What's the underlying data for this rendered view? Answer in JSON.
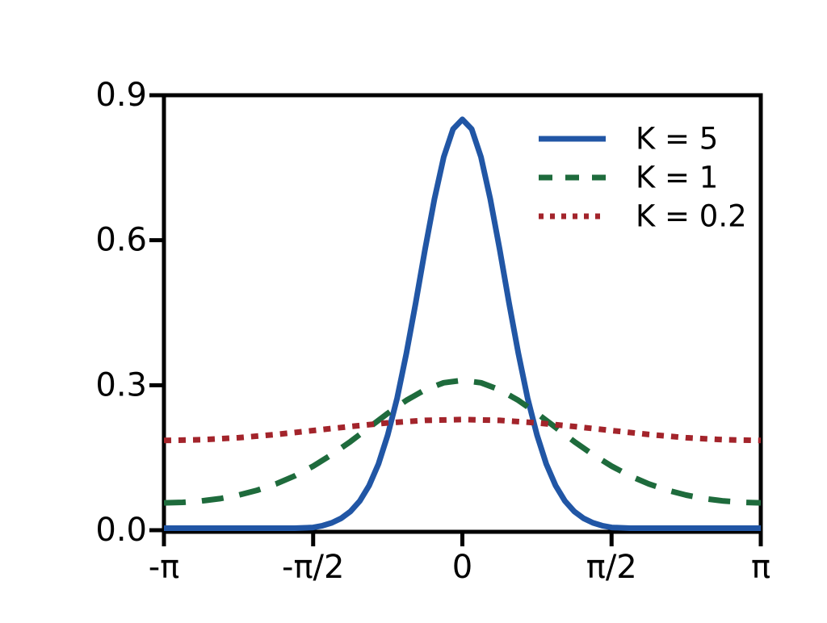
{
  "figure": {
    "background": "#ffffff",
    "axis_color": "#000000"
  },
  "chart_data": {
    "type": "line",
    "title": "",
    "xlabel": "",
    "ylabel": "",
    "x_unit": "radians (x values stored as multiples of pi)",
    "xlim_over_pi": [
      -1,
      1
    ],
    "ylim": [
      0,
      0.9
    ],
    "grid": false,
    "legend_position": "upper right",
    "x_ticks": [
      {
        "pos": -1,
        "label": "-π"
      },
      {
        "pos": -0.5,
        "label": "-π/2"
      },
      {
        "pos": 0,
        "label": "0"
      },
      {
        "pos": 0.5,
        "label": "π/2"
      },
      {
        "pos": 1,
        "label": "π"
      }
    ],
    "y_ticks": [
      {
        "pos": 0,
        "label": "0.0"
      },
      {
        "pos": 0.3,
        "label": "0.3"
      },
      {
        "pos": 0.6,
        "label": "0.6"
      },
      {
        "pos": 0.9,
        "label": "0.9"
      }
    ],
    "series": [
      {
        "name": "K = 5",
        "color": "#2156A5",
        "line_style": "solid",
        "peak_value": 0.85,
        "points": [
          [
            -1,
            0
          ],
          [
            -0.9375,
            0.0001
          ],
          [
            -0.875,
            0.0001
          ],
          [
            -0.8125,
            0.0001
          ],
          [
            -0.75,
            0.0002
          ],
          [
            -0.6875,
            0.0004
          ],
          [
            -0.625,
            0.0008
          ],
          [
            -0.5625,
            0.0022
          ],
          [
            -0.5,
            0.0057
          ],
          [
            -0.46875,
            0.0093
          ],
          [
            -0.4375,
            0.0152
          ],
          [
            -0.40625,
            0.0245
          ],
          [
            -0.375,
            0.0388
          ],
          [
            -0.34375,
            0.0605
          ],
          [
            -0.3125,
            0.0921
          ],
          [
            -0.28125,
            0.137
          ],
          [
            -0.25,
            0.197
          ],
          [
            -0.21875,
            0.273
          ],
          [
            -0.1875,
            0.366
          ],
          [
            -0.15625,
            0.471
          ],
          [
            -0.125,
            0.581
          ],
          [
            -0.09375,
            0.685
          ],
          [
            -0.0625,
            0.772
          ],
          [
            -0.03125,
            0.83
          ],
          [
            0,
            0.85
          ],
          [
            0.03125,
            0.83
          ],
          [
            0.0625,
            0.772
          ],
          [
            0.09375,
            0.685
          ],
          [
            0.125,
            0.581
          ],
          [
            0.15625,
            0.471
          ],
          [
            0.1875,
            0.366
          ],
          [
            0.21875,
            0.273
          ],
          [
            0.25,
            0.197
          ],
          [
            0.28125,
            0.137
          ],
          [
            0.3125,
            0.0921
          ],
          [
            0.34375,
            0.0605
          ],
          [
            0.375,
            0.0388
          ],
          [
            0.40625,
            0.0245
          ],
          [
            0.4375,
            0.0152
          ],
          [
            0.46875,
            0.0093
          ],
          [
            0.5,
            0.0057
          ],
          [
            0.5625,
            0.0022
          ],
          [
            0.625,
            0.0008
          ],
          [
            0.6875,
            0.0004
          ],
          [
            0.75,
            0.0002
          ],
          [
            0.8125,
            0.0001
          ],
          [
            0.875,
            0.0001
          ],
          [
            0.9375,
            0.0001
          ],
          [
            1,
            0
          ]
        ]
      },
      {
        "name": "K = 1",
        "color": "#1E6B3C",
        "line_style": "dashed",
        "peak_value": 0.31,
        "points": [
          [
            -1,
            0.0566
          ],
          [
            -0.9375,
            0.0576
          ],
          [
            -0.875,
            0.0604
          ],
          [
            -0.8125,
            0.0653
          ],
          [
            -0.75,
            0.0726
          ],
          [
            -0.6875,
            0.0826
          ],
          [
            -0.625,
            0.0957
          ],
          [
            -0.5625,
            0.1122
          ],
          [
            -0.5,
            0.1325
          ],
          [
            -0.4375,
            0.1564
          ],
          [
            -0.375,
            0.1834
          ],
          [
            -0.3125,
            0.2125
          ],
          [
            -0.25,
            0.2417
          ],
          [
            -0.1875,
            0.2686
          ],
          [
            -0.125,
            0.2906
          ],
          [
            -0.0625,
            0.305
          ],
          [
            0,
            0.31
          ],
          [
            0.0625,
            0.305
          ],
          [
            0.125,
            0.2906
          ],
          [
            0.1875,
            0.2686
          ],
          [
            0.25,
            0.2417
          ],
          [
            0.3125,
            0.2125
          ],
          [
            0.375,
            0.1834
          ],
          [
            0.4375,
            0.1564
          ],
          [
            0.5,
            0.1325
          ],
          [
            0.5625,
            0.1122
          ],
          [
            0.625,
            0.0957
          ],
          [
            0.6875,
            0.0826
          ],
          [
            0.75,
            0.0726
          ],
          [
            0.8125,
            0.0653
          ],
          [
            0.875,
            0.0604
          ],
          [
            0.9375,
            0.0576
          ],
          [
            1,
            0.0566
          ]
        ]
      },
      {
        "name": "K = 0.2",
        "color": "#A3242B",
        "line_style": "dotted",
        "peak_value": 0.229,
        "points": [
          [
            -1,
            0.1856
          ],
          [
            -0.875,
            0.1871
          ],
          [
            -0.75,
            0.1914
          ],
          [
            -0.625,
            0.1981
          ],
          [
            -0.5,
            0.2062
          ],
          [
            -0.375,
            0.2146
          ],
          [
            -0.25,
            0.2221
          ],
          [
            -0.125,
            0.2272
          ],
          [
            0,
            0.229
          ],
          [
            0.125,
            0.2272
          ],
          [
            0.25,
            0.2221
          ],
          [
            0.375,
            0.2146
          ],
          [
            0.5,
            0.2062
          ],
          [
            0.625,
            0.1981
          ],
          [
            0.75,
            0.1914
          ],
          [
            0.875,
            0.1871
          ],
          [
            1,
            0.1856
          ]
        ]
      }
    ]
  }
}
